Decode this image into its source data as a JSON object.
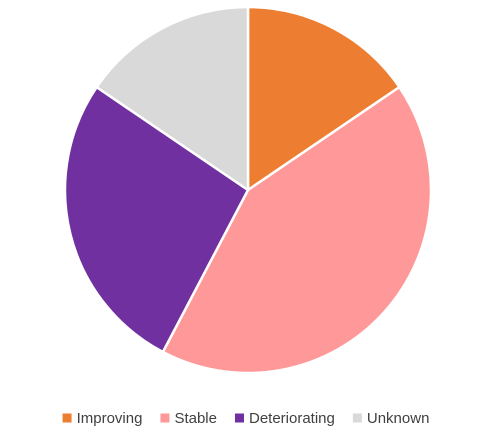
{
  "chart_data": {
    "type": "pie",
    "categories": [
      "Improving",
      "Stable",
      "Deteriorating",
      "Unknown"
    ],
    "values": [
      15.5,
      42.2,
      26.8,
      15.5
    ],
    "colors": [
      "#ED7D31",
      "#FF9999",
      "#7030A0",
      "#D9D9D9"
    ],
    "legend": "bottom"
  }
}
